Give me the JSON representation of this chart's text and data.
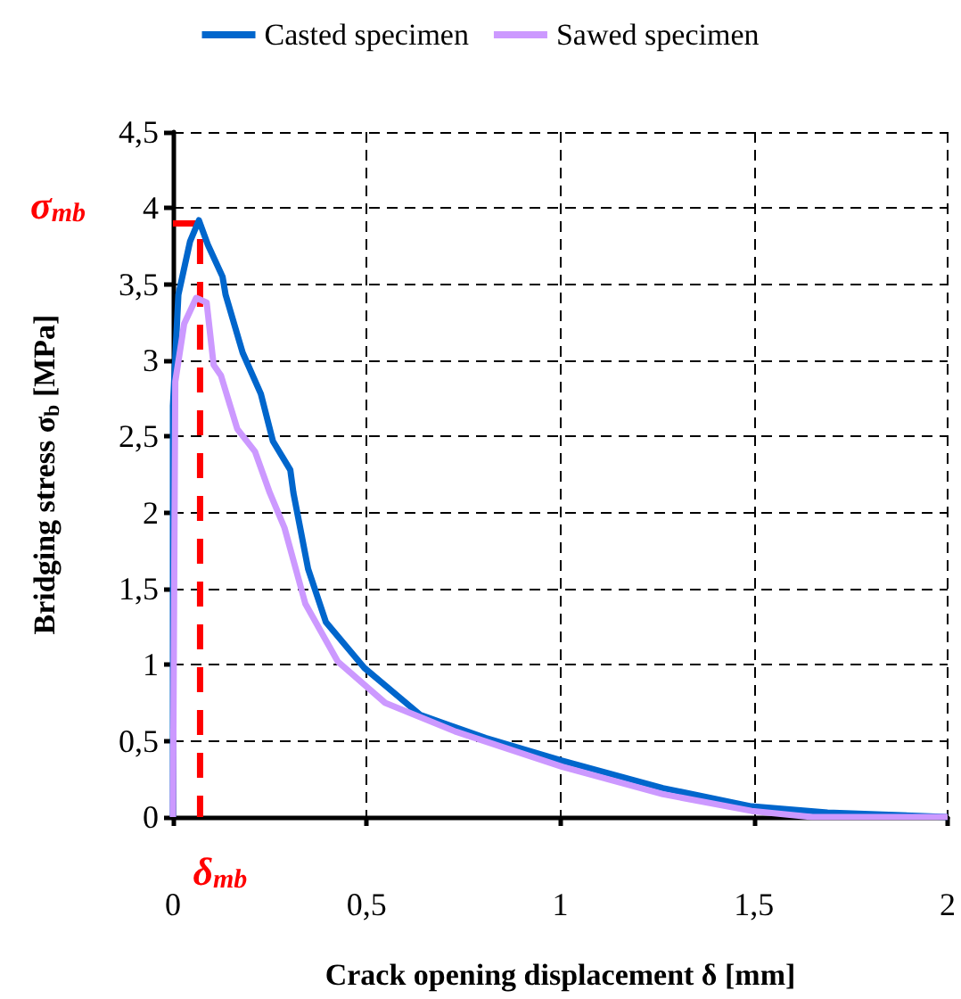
{
  "chart_data": {
    "type": "line",
    "xlabel": "Crack opening displacement δ [mm]",
    "ylabel": "Bridging stress σ$_{b}$ [MPa]",
    "xlim": [
      0,
      2
    ],
    "ylim": [
      0,
      4.5
    ],
    "xticks": [
      0,
      {
        "value": 0.5,
        "label": "0,5"
      },
      1,
      {
        "value": 1.5,
        "label": "1,5"
      },
      2
    ],
    "yticks": [
      0,
      {
        "value": 0.5,
        "label": "0,5"
      },
      1,
      {
        "value": 1.5,
        "label": "1,5"
      },
      2,
      {
        "value": 2.5,
        "label": "2,5"
      },
      3,
      {
        "value": 3.5,
        "label": "3,5"
      },
      4,
      {
        "value": 4.5,
        "label": "4,5"
      }
    ],
    "grid": true,
    "legend": "top",
    "marker": "none",
    "line_style": "solid",
    "series": [
      {
        "name": "Casted specimen",
        "color": "#0066cc",
        "x": [
          0,
          0,
          0.014,
          0.044,
          0.067,
          0.09,
          0.128,
          0.136,
          0.18,
          0.227,
          0.258,
          0.303,
          0.311,
          0.349,
          0.395,
          0.494,
          0.639,
          0.807,
          1.005,
          1.265,
          1.494,
          1.69,
          2
        ],
        "values": [
          0,
          2.7,
          3.43,
          3.78,
          3.92,
          3.76,
          3.55,
          3.43,
          3.05,
          2.78,
          2.47,
          2.28,
          2.13,
          1.63,
          1.28,
          0.98,
          0.67,
          0.52,
          0.37,
          0.19,
          0.07,
          0.03,
          0
        ]
      },
      {
        "name": "Sawed specimen",
        "color": "#cc99ff",
        "x": [
          0,
          0.006,
          0.029,
          0.06,
          0.087,
          0.105,
          0.124,
          0.166,
          0.212,
          0.25,
          0.288,
          0.342,
          0.426,
          0.548,
          0.731,
          1.005,
          1.265,
          1.494,
          1.65,
          2
        ],
        "values": [
          0,
          2.86,
          3.24,
          3.41,
          3.38,
          2.97,
          2.9,
          2.55,
          2.4,
          2.13,
          1.9,
          1.4,
          1.02,
          0.75,
          0.56,
          0.33,
          0.15,
          0.04,
          0,
          0
        ]
      },
      {
        "color": "#ff0000",
        "line_style": "dashed",
        "x": [
          0,
          0.07,
          0.07
        ],
        "values": [
          3.9,
          3.9,
          0
        ]
      }
    ],
    "annotations": [
      {
        "text": "σ$_{mb}$",
        "x": 0,
        "y": 3.9
      },
      {
        "text": "δ$_{mb}$",
        "x": 0.07,
        "y": 0
      }
    ]
  }
}
